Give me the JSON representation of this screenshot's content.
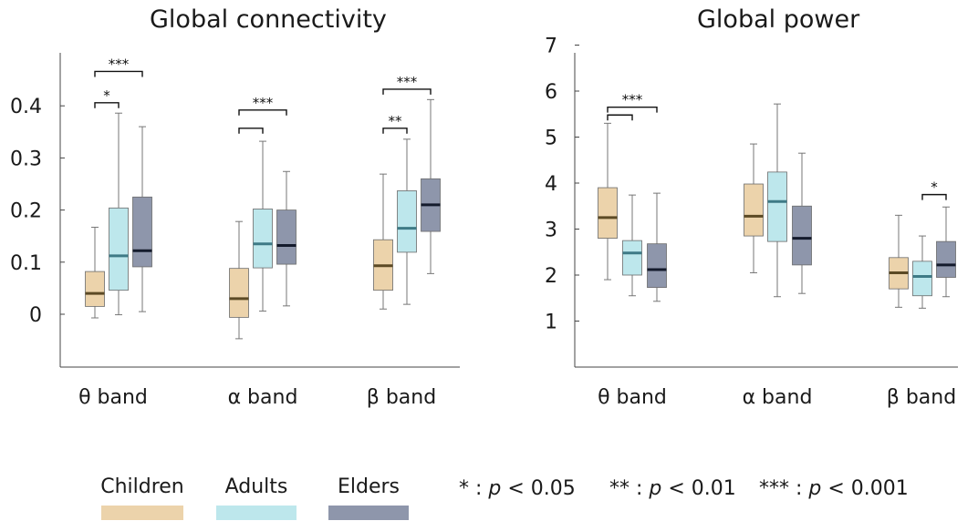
{
  "chart_data": [
    {
      "type": "box",
      "title": "Global connectivity",
      "categories": [
        "θ band",
        "α band",
        "β band"
      ],
      "yticks": [
        "0",
        "0.1",
        "0.2",
        "0.3",
        "0.4"
      ],
      "ylim": [
        -0.1,
        0.5
      ],
      "series": [
        {
          "name": "Children",
          "boxes": [
            {
              "min": -0.007,
              "q1": 0.015,
              "median": 0.04,
              "q3": 0.082,
              "max": 0.167
            },
            {
              "min": -0.047,
              "q1": -0.006,
              "median": 0.03,
              "q3": 0.088,
              "max": 0.178
            },
            {
              "min": 0.01,
              "q1": 0.046,
              "median": 0.093,
              "q3": 0.143,
              "max": 0.269
            }
          ]
        },
        {
          "name": "Adults",
          "boxes": [
            {
              "min": -0.001,
              "q1": 0.046,
              "median": 0.112,
              "q3": 0.204,
              "max": 0.386
            },
            {
              "min": 0.006,
              "q1": 0.089,
              "median": 0.135,
              "q3": 0.202,
              "max": 0.332
            },
            {
              "min": 0.019,
              "q1": 0.119,
              "median": 0.165,
              "q3": 0.237,
              "max": 0.336
            }
          ]
        },
        {
          "name": "Elders",
          "boxes": [
            {
              "min": 0.005,
              "q1": 0.091,
              "median": 0.122,
              "q3": 0.225,
              "max": 0.36
            },
            {
              "min": 0.016,
              "q1": 0.096,
              "median": 0.132,
              "q3": 0.2,
              "max": 0.274
            },
            {
              "min": 0.078,
              "q1": 0.159,
              "median": 0.21,
              "q3": 0.26,
              "max": 0.412
            }
          ]
        }
      ],
      "significance": [
        {
          "category": 0,
          "from": 0,
          "to": 1,
          "label": "*",
          "y": 0.406
        },
        {
          "category": 0,
          "from": 0,
          "to": 2,
          "label": "***",
          "y": 0.466
        },
        {
          "category": 1,
          "from": 0,
          "to": 1,
          "label": "",
          "y": 0.357
        },
        {
          "category": 1,
          "from": 0,
          "to": 2,
          "label": "***",
          "y": 0.392
        },
        {
          "category": 2,
          "from": 0,
          "to": 1,
          "label": "**",
          "y": 0.357
        },
        {
          "category": 2,
          "from": 0,
          "to": 2,
          "label": "***",
          "y": 0.432
        }
      ]
    },
    {
      "type": "box",
      "title": "Global power",
      "categories": [
        "θ band",
        "α band",
        "β band"
      ],
      "yticks": [
        "1",
        "2",
        "3",
        "4",
        "5",
        "6",
        "7"
      ],
      "ylim": [
        0,
        8
      ],
      "series": [
        {
          "name": "Children",
          "boxes": [
            {
              "min": 1.9,
              "q1": 2.8,
              "median": 3.25,
              "q3": 3.9,
              "max": 5.3
            },
            {
              "min": 2.05,
              "q1": 2.85,
              "median": 3.28,
              "q3": 3.98,
              "max": 4.85
            },
            {
              "min": 1.3,
              "q1": 1.7,
              "median": 2.05,
              "q3": 2.38,
              "max": 3.3
            }
          ]
        },
        {
          "name": "Adults",
          "boxes": [
            {
              "min": 1.55,
              "q1": 2.0,
              "median": 2.48,
              "q3": 2.75,
              "max": 3.74
            },
            {
              "min": 1.53,
              "q1": 2.73,
              "median": 3.6,
              "q3": 4.24,
              "max": 5.72
            },
            {
              "min": 1.28,
              "q1": 1.55,
              "median": 1.97,
              "q3": 2.3,
              "max": 2.85
            }
          ]
        },
        {
          "name": "Elders",
          "boxes": [
            {
              "min": 1.43,
              "q1": 1.73,
              "median": 2.12,
              "q3": 2.68,
              "max": 3.78
            },
            {
              "min": 1.6,
              "q1": 2.22,
              "median": 2.8,
              "q3": 3.5,
              "max": 4.65
            },
            {
              "min": 1.53,
              "q1": 1.95,
              "median": 2.22,
              "q3": 2.73,
              "max": 3.48
            }
          ]
        }
      ],
      "significance": [
        {
          "category": 0,
          "from": 0,
          "to": 1,
          "label": "",
          "y": 5.48
        },
        {
          "category": 0,
          "from": 0,
          "to": 2,
          "label": "***",
          "y": 5.65
        },
        {
          "category": 2,
          "from": 1,
          "to": 2,
          "label": "*",
          "y": 3.75
        }
      ]
    }
  ],
  "legend": [
    {
      "label": "Children",
      "color": "#ecd3ab"
    },
    {
      "label": "Adults",
      "color": "#bde7ec"
    },
    {
      "label": "Elders",
      "color": "#8e96ab"
    }
  ],
  "median_colors": [
    "#5c4a25",
    "#3e7a86",
    "#141b2c"
  ],
  "significance_legend": [
    {
      "stars": "*",
      "p": "p",
      "rest": "< 0.05"
    },
    {
      "stars": "**",
      "p": "p",
      "rest": "< 0.01"
    },
    {
      "stars": "***",
      "p": "p",
      "rest": "< 0.001"
    }
  ]
}
